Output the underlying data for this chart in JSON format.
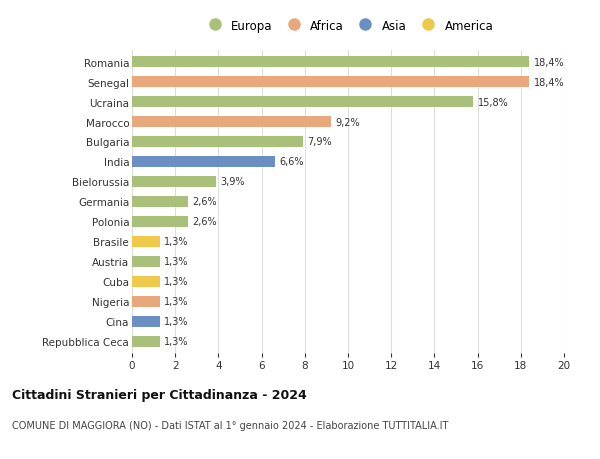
{
  "countries": [
    "Romania",
    "Senegal",
    "Ucraina",
    "Marocco",
    "Bulgaria",
    "India",
    "Bielorussia",
    "Germania",
    "Polonia",
    "Brasile",
    "Austria",
    "Cuba",
    "Nigeria",
    "Cina",
    "Repubblica Ceca"
  ],
  "values": [
    18.4,
    18.4,
    15.8,
    9.2,
    7.9,
    6.6,
    3.9,
    2.6,
    2.6,
    1.3,
    1.3,
    1.3,
    1.3,
    1.3,
    1.3
  ],
  "labels": [
    "18,4%",
    "18,4%",
    "15,8%",
    "9,2%",
    "7,9%",
    "6,6%",
    "3,9%",
    "2,6%",
    "2,6%",
    "1,3%",
    "1,3%",
    "1,3%",
    "1,3%",
    "1,3%",
    "1,3%"
  ],
  "continents": [
    "Europa",
    "Africa",
    "Europa",
    "Africa",
    "Europa",
    "Asia",
    "Europa",
    "Europa",
    "Europa",
    "America",
    "Europa",
    "America",
    "Africa",
    "Asia",
    "Europa"
  ],
  "continent_colors": {
    "Europa": "#a8c07a",
    "Africa": "#e8a87c",
    "Asia": "#6b8fc2",
    "America": "#f0c84a"
  },
  "legend_order": [
    "Europa",
    "Africa",
    "Asia",
    "America"
  ],
  "title": "Cittadini Stranieri per Cittadinanza - 2024",
  "subtitle": "COMUNE DI MAGGIORA (NO) - Dati ISTAT al 1° gennaio 2024 - Elaborazione TUTTITALIA.IT",
  "xlim": [
    0,
    20
  ],
  "xticks": [
    0,
    2,
    4,
    6,
    8,
    10,
    12,
    14,
    16,
    18,
    20
  ],
  "background_color": "#ffffff",
  "grid_color": "#dddddd",
  "bar_height": 0.55,
  "figsize": [
    6.0,
    4.6
  ],
  "dpi": 100
}
